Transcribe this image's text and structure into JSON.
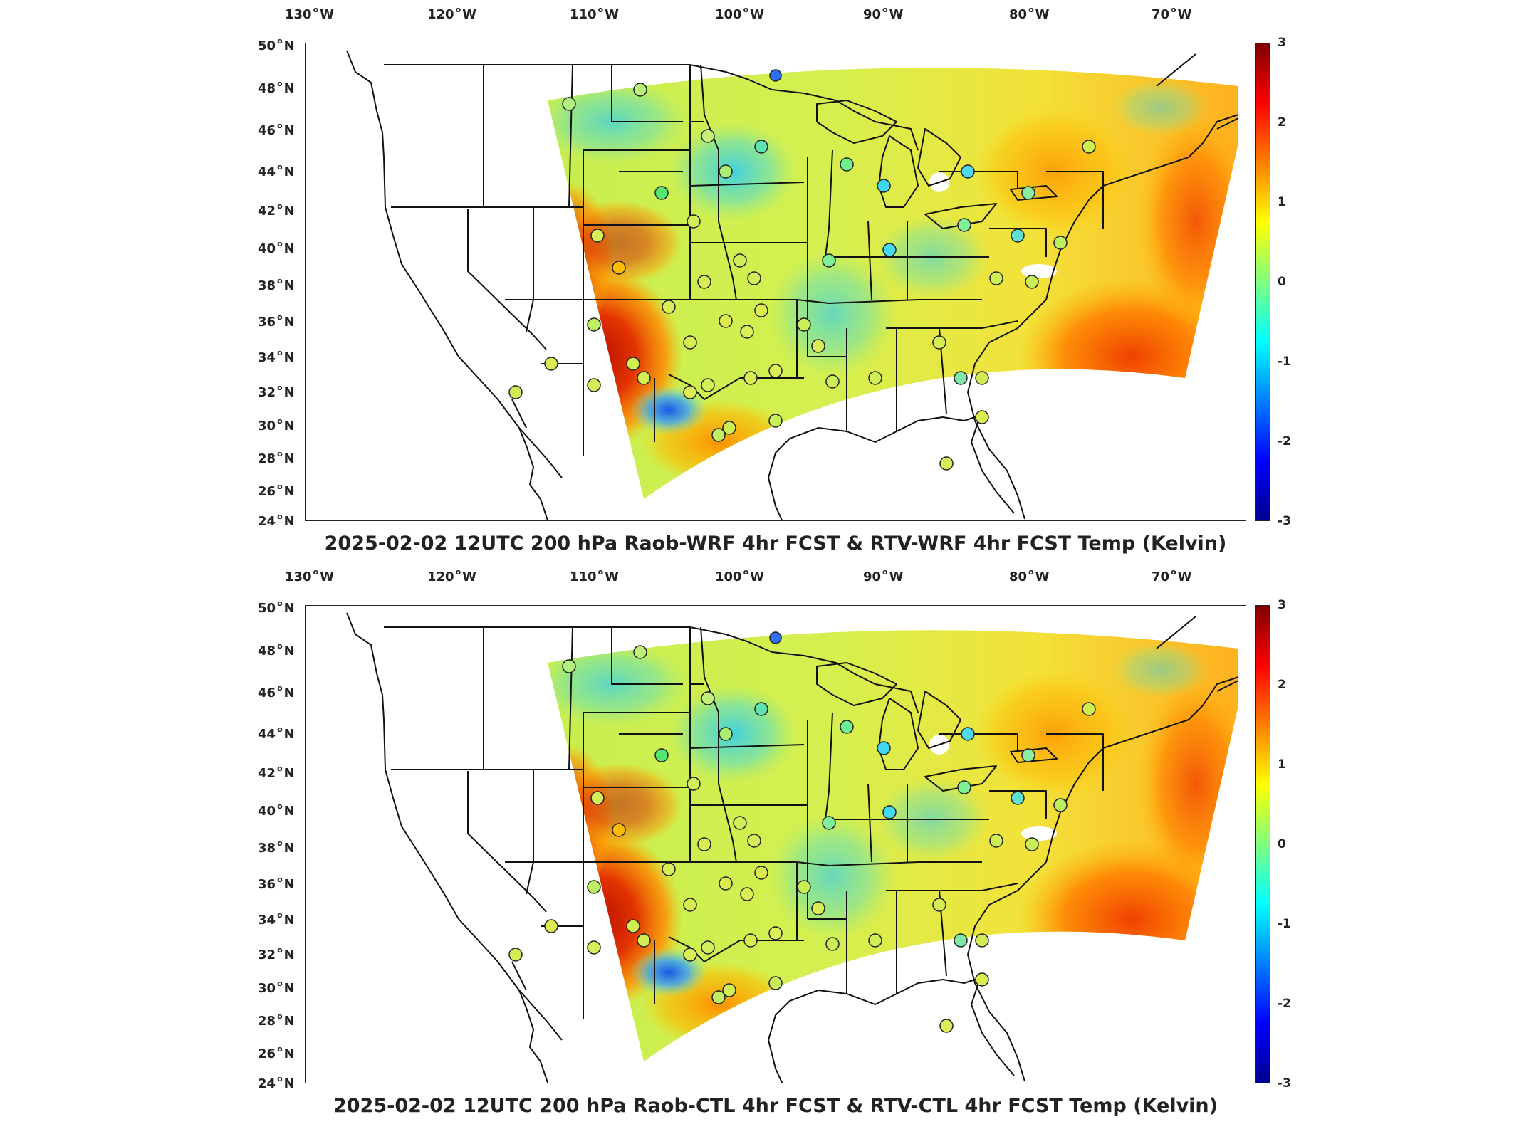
{
  "longitude_labels": [
    {
      "value": "130",
      "hemisphere": "W"
    },
    {
      "value": "120",
      "hemisphere": "W"
    },
    {
      "value": "110",
      "hemisphere": "W"
    },
    {
      "value": "100",
      "hemisphere": "W"
    },
    {
      "value": "90",
      "hemisphere": "W"
    },
    {
      "value": "80",
      "hemisphere": "W"
    },
    {
      "value": "70",
      "hemisphere": "W"
    }
  ],
  "latitude_labels": [
    {
      "value": "50",
      "hemisphere": "N"
    },
    {
      "value": "48",
      "hemisphere": "N"
    },
    {
      "value": "46",
      "hemisphere": "N"
    },
    {
      "value": "44",
      "hemisphere": "N"
    },
    {
      "value": "42",
      "hemisphere": "N"
    },
    {
      "value": "40",
      "hemisphere": "N"
    },
    {
      "value": "38",
      "hemisphere": "N"
    },
    {
      "value": "36",
      "hemisphere": "N"
    },
    {
      "value": "34",
      "hemisphere": "N"
    },
    {
      "value": "32",
      "hemisphere": "N"
    },
    {
      "value": "30",
      "hemisphere": "N"
    },
    {
      "value": "28",
      "hemisphere": "N"
    },
    {
      "value": "26",
      "hemisphere": "N"
    },
    {
      "value": "24",
      "hemisphere": "N"
    }
  ],
  "colorbar": {
    "ticks": [
      "3",
      "2",
      "1",
      "0",
      "-1",
      "-2",
      "-3"
    ],
    "range": [
      -3,
      3
    ],
    "colormap": "jet"
  },
  "panels": [
    {
      "title": "2025-02-02 12UTC 200 hPa Raob-WRF 4hr FCST & RTV-WRF 4hr FCST Temp (Kelvin)"
    },
    {
      "title": "2025-02-02 12UTC 200 hPa Raob-CTL 4hr FCST & RTV-CTL 4hr FCST Temp (Kelvin)"
    }
  ],
  "colors": {
    "hot": "#d42000",
    "warm": "#ff9a00",
    "yellow": "#f5e83a",
    "green": "#8fe87a",
    "cyan": "#4fd8e8",
    "blue": "#2a6ff0",
    "border": "#111111"
  }
}
